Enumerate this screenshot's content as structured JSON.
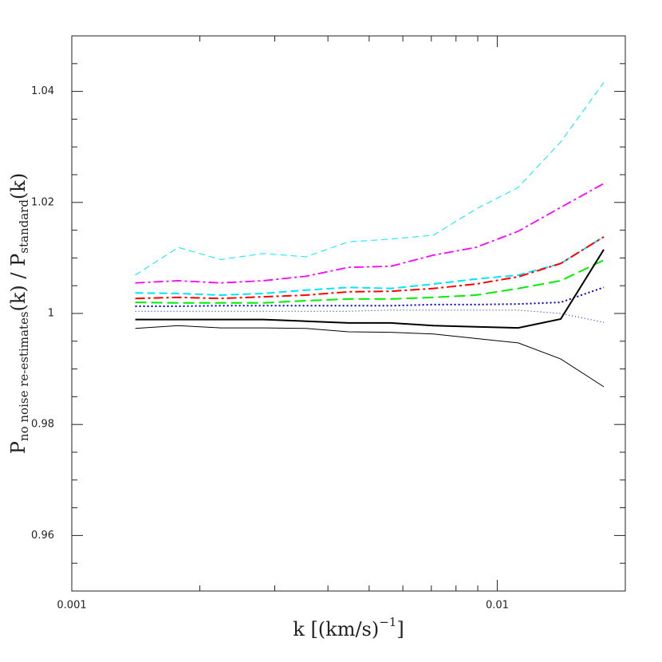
{
  "chart_data": {
    "type": "line",
    "xlog": true,
    "xlabel": {
      "text": "k  [(km/s)",
      "sup": "−1",
      "end": "]"
    },
    "ylabel": [
      "P",
      "no noise re-estimates",
      "(k)  /  P",
      "standard",
      "(k)"
    ],
    "x": [
      0.00141,
      0.00178,
      0.00224,
      0.00282,
      0.00355,
      0.00447,
      0.00562,
      0.00708,
      0.00891,
      0.0112,
      0.0141,
      0.0178
    ],
    "xlim": [
      0.001,
      0.02
    ],
    "xticks": [
      0.001,
      0.01
    ],
    "xminorticks": [
      0.002,
      0.003,
      0.004,
      0.005,
      0.006,
      0.007,
      0.008,
      0.009
    ],
    "ylim": [
      0.95,
      1.05
    ],
    "yticks": [
      0.96,
      0.98,
      1,
      1.02,
      1.04
    ],
    "yminorticks": [
      0.955,
      0.965,
      0.97,
      0.975,
      0.985,
      0.99,
      0.995,
      1.005,
      1.01,
      1.015,
      1.025,
      1.03,
      1.035,
      1.045
    ],
    "series": [
      {
        "color": "#00e5ff",
        "dash": "8,5",
        "width": 1,
        "values": [
          1.0069,
          1.0119,
          1.0097,
          1.0108,
          1.0102,
          1.0129,
          1.0134,
          1.0141,
          1.0188,
          1.0227,
          1.0309,
          1.0416
        ]
      },
      {
        "color": "#ff00ff",
        "dash": "12,4,3,4",
        "width": 1.8,
        "values": [
          1.0055,
          1.0059,
          1.0055,
          1.0059,
          1.0067,
          1.0083,
          1.0085,
          1.0105,
          1.0119,
          1.0148,
          1.0191,
          1.0234
        ]
      },
      {
        "color": "#00e5ff",
        "dash": "10,5",
        "width": 2,
        "values": [
          1.0037,
          1.0036,
          1.0033,
          1.0036,
          1.0042,
          1.0047,
          1.0045,
          1.0053,
          1.0062,
          1.0069,
          1.009,
          1.0138
        ]
      },
      {
        "color": "#ff0000",
        "dash": "12,4,3,4",
        "width": 2,
        "values": [
          1.0027,
          1.0029,
          1.0027,
          1.003,
          1.0033,
          1.0039,
          1.004,
          1.0045,
          1.0053,
          1.0066,
          1.009,
          1.0138
        ]
      },
      {
        "color": "#00ee00",
        "dash": "14,6",
        "width": 2,
        "values": [
          1.002,
          1.0019,
          1.0019,
          1.0019,
          1.0023,
          1.0026,
          1.0026,
          1.0029,
          1.0033,
          1.0045,
          1.0059,
          1.0096
        ]
      },
      {
        "color": "#0000cc",
        "dash": "2,3",
        "width": 2,
        "values": [
          1.0013,
          1.0013,
          1.0014,
          1.0014,
          1.0014,
          1.0014,
          1.0014,
          1.0016,
          1.0016,
          1.0017,
          1.002,
          1.0047
        ]
      },
      {
        "color": "#0000cc",
        "dash": "1,3",
        "width": 1,
        "values": [
          1.0004,
          1.0004,
          1.0004,
          1.0004,
          1.0004,
          1.0004,
          1.0006,
          1.0006,
          1.0006,
          1.0006,
          1.0,
          0.9984
        ]
      },
      {
        "color": "#000000",
        "dash": "none",
        "width": 2,
        "values": [
          0.9989,
          0.9989,
          0.9989,
          0.9989,
          0.9986,
          0.9983,
          0.9983,
          0.9978,
          0.9976,
          0.9974,
          0.999,
          1.0115
        ]
      },
      {
        "color": "#000000",
        "dash": "none",
        "width": 1,
        "values": [
          0.9973,
          0.9978,
          0.9974,
          0.9974,
          0.9973,
          0.9967,
          0.9966,
          0.9963,
          0.9955,
          0.9947,
          0.9918,
          0.9868
        ]
      }
    ]
  }
}
